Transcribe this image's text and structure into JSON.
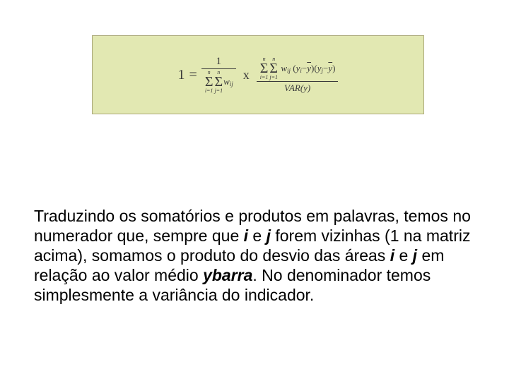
{
  "formula": {
    "background_color": "#e2e8b2",
    "border_color": "#aaa878",
    "text_color": "#3a3a3a",
    "lhs": "1",
    "equals": "=",
    "frac1_num": "1",
    "sum_lower_i": "i=1",
    "sum_lower_j": "j=1",
    "sum_upper": "n",
    "sigma": "Σ",
    "w": "w",
    "w_sub": "ij",
    "times": "x",
    "paren_open": "(",
    "paren_close": ")",
    "y": "y",
    "y_sub_i": "i",
    "y_sub_j": "j",
    "ybar": "y",
    "minus": " − ",
    "var_label": "VAR(y)"
  },
  "paragraph": {
    "t1": "Traduzindo os somatórios e produtos em palavras, temos no numerador que, sempre que ",
    "i": "i",
    "t2": " e ",
    "j": "j",
    "t3": " forem vizinhas (1 na matriz acima), somamos o produto do desvio das áreas ",
    "t4": " em relação ao valor médio ",
    "ybarra": "ybarra",
    "t5": ". No denominador temos simplesmente a variância do indicador."
  }
}
